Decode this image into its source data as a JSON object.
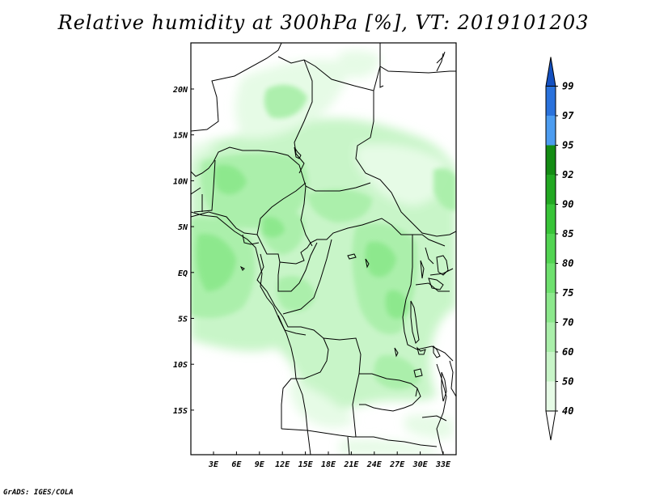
{
  "title": "Relative humidity at 300hPa [%], VT: 2019101203",
  "footer": "GrADS: IGES/COLA",
  "map": {
    "lon_ticks": [
      "3E",
      "6E",
      "9E",
      "12E",
      "15E",
      "18E",
      "21E",
      "24E",
      "27E",
      "30E",
      "33E"
    ],
    "lat_ticks": [
      "20N",
      "15N",
      "10N",
      "5N",
      "EQ",
      "5S",
      "10S",
      "15S"
    ]
  },
  "colorbar": {
    "levels": [
      "40",
      "50",
      "60",
      "70",
      "75",
      "80",
      "85",
      "90",
      "92",
      "95",
      "97",
      "99"
    ],
    "colors": [
      "#ffffff",
      "#e6fbe6",
      "#c8f5c8",
      "#aaefaa",
      "#8ce88c",
      "#6ee06e",
      "#52d452",
      "#38c438",
      "#22a822",
      "#148c14",
      "#4c9cf0",
      "#2a72dc",
      "#1450c0"
    ]
  }
}
